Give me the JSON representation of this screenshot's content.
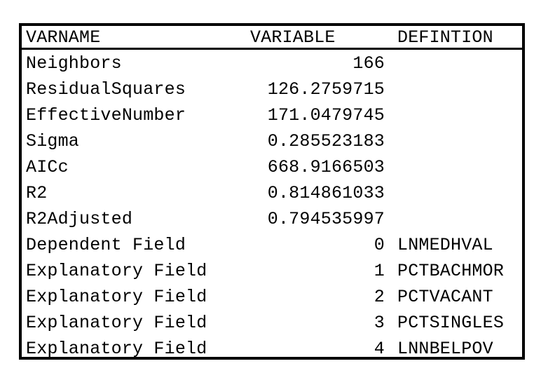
{
  "table": {
    "headers": {
      "varname": "VARNAME",
      "variable": "VARIABLE",
      "definition": "DEFINTION"
    },
    "rows": [
      {
        "varname": "Neighbors",
        "variable": "166",
        "definition": ""
      },
      {
        "varname": "ResidualSquares",
        "variable": "126.2759715",
        "definition": ""
      },
      {
        "varname": "EffectiveNumber",
        "variable": "171.0479745",
        "definition": ""
      },
      {
        "varname": "Sigma",
        "variable": "0.285523183",
        "definition": ""
      },
      {
        "varname": "AICc",
        "variable": "668.9166503",
        "definition": ""
      },
      {
        "varname": "R2",
        "variable": "0.814861033",
        "definition": ""
      },
      {
        "varname": "R2Adjusted",
        "variable": "0.794535997",
        "definition": ""
      },
      {
        "varname": "Dependent Field",
        "variable": "0",
        "definition": "LNMEDHVAL"
      },
      {
        "varname": "Explanatory Field",
        "variable": "1",
        "definition": "PCTBACHMOR"
      },
      {
        "varname": "Explanatory Field",
        "variable": "2",
        "definition": "PCTVACANT"
      },
      {
        "varname": "Explanatory Field",
        "variable": "3",
        "definition": "PCTSINGLES"
      },
      {
        "varname": "Explanatory Field",
        "variable": "4",
        "definition": "LNNBELPOV"
      }
    ]
  }
}
